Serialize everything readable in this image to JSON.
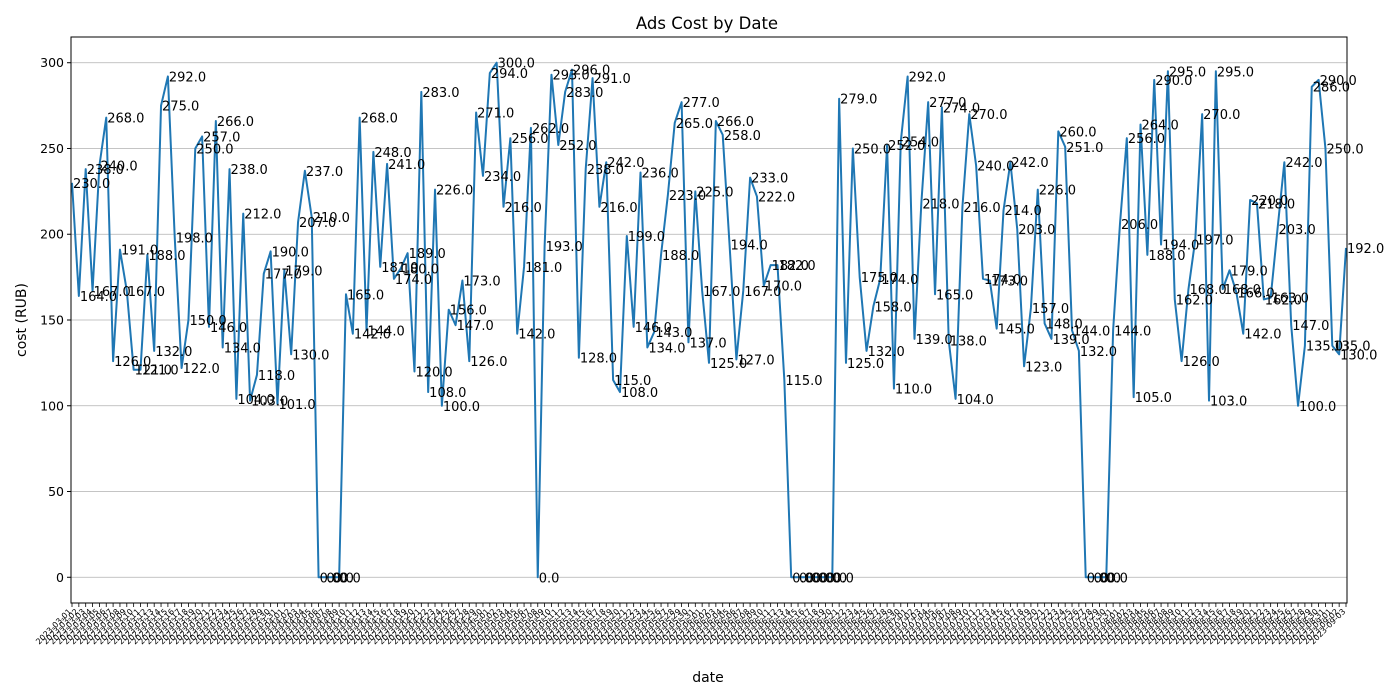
{
  "chart_data": {
    "type": "line",
    "title": "Ads Cost by Date",
    "xlabel": "date",
    "ylabel": "cost (RUB)",
    "ylim": [
      -15,
      315
    ],
    "yticks": [
      0,
      50,
      100,
      150,
      200,
      250,
      300
    ],
    "grid": "y",
    "line_color": "#1f77b4",
    "x_start": "2023-03-01",
    "x_end": "2023-08-31",
    "values": [
      230,
      164,
      238,
      167,
      240,
      268,
      126,
      191,
      167,
      121,
      121,
      188,
      132,
      275,
      292,
      198,
      122,
      150,
      250,
      257,
      146,
      266,
      134,
      238,
      104,
      212,
      103,
      118,
      177,
      190,
      101,
      179,
      130,
      207,
      237,
      210,
      0,
      0,
      0,
      0,
      165,
      142,
      268,
      144,
      248,
      181,
      241,
      174,
      180,
      189,
      120,
      283,
      108,
      226,
      100,
      156,
      147,
      173,
      126,
      271,
      234,
      294,
      300,
      216,
      256,
      142,
      181,
      262,
      0,
      193,
      293,
      252,
      283,
      296,
      128,
      238,
      291,
      216,
      242,
      115,
      108,
      199,
      146,
      236,
      134,
      143,
      188,
      223,
      265,
      277,
      137,
      225,
      167,
      125,
      266,
      258,
      194,
      127,
      167,
      233,
      222,
      170,
      182,
      182,
      115,
      0,
      0,
      0,
      0,
      0,
      0,
      0,
      279,
      125,
      250,
      175,
      132,
      158,
      174,
      252,
      110,
      254,
      292,
      139,
      218,
      277,
      165,
      274,
      138,
      104,
      216,
      270,
      240,
      174,
      173,
      145,
      214,
      242,
      203,
      123,
      157,
      226,
      148,
      139,
      260,
      251,
      144,
      132,
      0,
      0,
      0,
      0,
      144,
      206,
      256,
      105,
      264,
      188,
      290,
      194,
      295,
      162,
      126,
      168,
      197,
      270,
      103,
      295,
      168,
      179,
      166,
      142,
      220,
      218,
      162,
      163,
      203,
      242,
      147,
      100,
      135,
      286,
      290,
      250,
      135,
      130,
      192
    ]
  }
}
